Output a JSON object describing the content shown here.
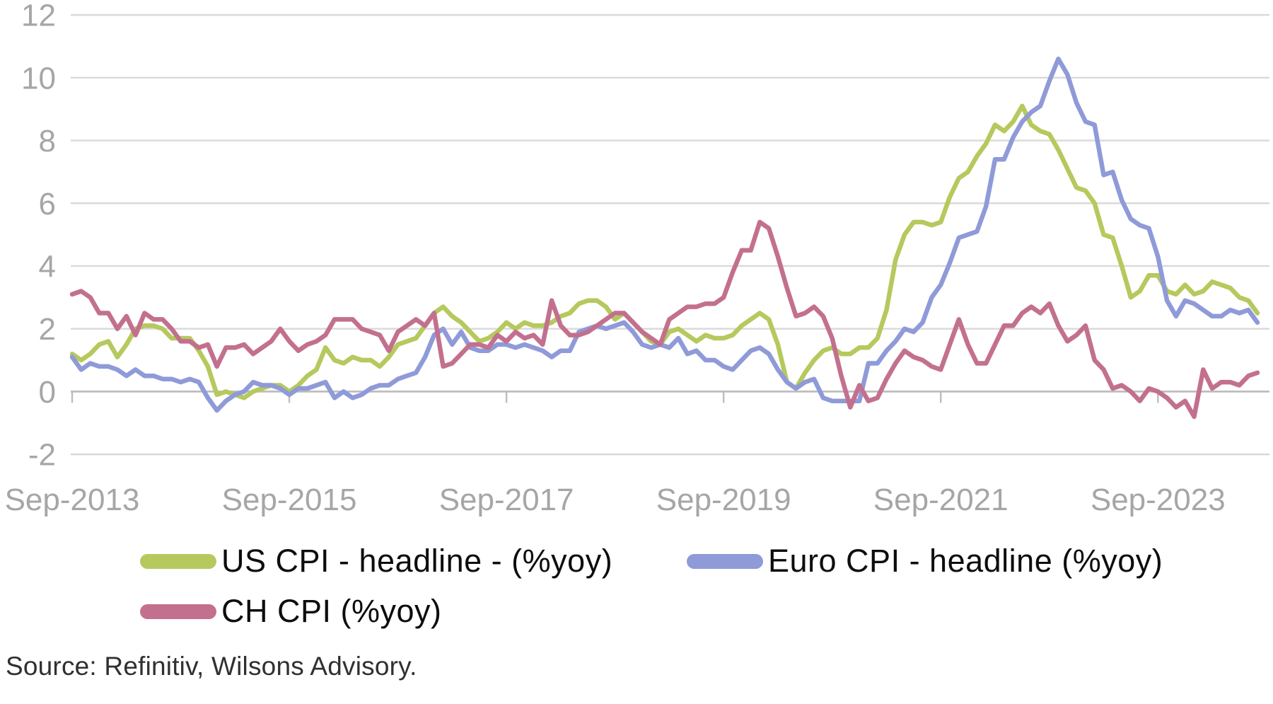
{
  "source": "Source: Refinitiv, Wilsons Advisory.",
  "chart_data": {
    "type": "line",
    "title": "",
    "xlabel": "",
    "ylabel": "",
    "x_start": "Sep-2013",
    "x_end": "Aug-2024",
    "x_frequency": "monthly",
    "x_tick_labels": [
      "Sep-2013",
      "Sep-2015",
      "Sep-2017",
      "Sep-2019",
      "Sep-2021",
      "Sep-2023"
    ],
    "x_tick_every_months": 24,
    "y_ticks": [
      12,
      10,
      8,
      6,
      4,
      2,
      0,
      -2
    ],
    "ylim": [
      -2,
      12
    ],
    "grid": "horizontal",
    "legend_position": "bottom",
    "grid_color": "#d9d9d9",
    "axis_line_color": "#bdbdbd",
    "axis_label_color": "#a6a6a6",
    "series": [
      {
        "name": "US CPI - headline - (%yoy)",
        "color": "#b5c95d",
        "values": [
          1.2,
          1.0,
          1.2,
          1.5,
          1.6,
          1.1,
          1.5,
          2.0,
          2.1,
          2.1,
          2.0,
          1.7,
          1.7,
          1.7,
          1.3,
          0.8,
          -0.1,
          0.0,
          -0.1,
          -0.2,
          0.0,
          0.1,
          0.2,
          0.2,
          0.0,
          0.2,
          0.5,
          0.7,
          1.4,
          1.0,
          0.9,
          1.1,
          1.0,
          1.0,
          0.8,
          1.1,
          1.5,
          1.6,
          1.7,
          2.1,
          2.5,
          2.7,
          2.4,
          2.2,
          1.9,
          1.6,
          1.7,
          1.9,
          2.2,
          2.0,
          2.2,
          2.1,
          2.1,
          2.2,
          2.4,
          2.5,
          2.8,
          2.9,
          2.9,
          2.7,
          2.3,
          2.5,
          2.2,
          1.9,
          1.6,
          1.5,
          1.9,
          2.0,
          1.8,
          1.6,
          1.8,
          1.7,
          1.7,
          1.8,
          2.1,
          2.3,
          2.5,
          2.3,
          1.5,
          0.3,
          0.1,
          0.6,
          1.0,
          1.3,
          1.4,
          1.2,
          1.2,
          1.4,
          1.4,
          1.7,
          2.6,
          4.2,
          5.0,
          5.4,
          5.4,
          5.3,
          5.4,
          6.2,
          6.8,
          7.0,
          7.5,
          7.9,
          8.5,
          8.3,
          8.6,
          9.1,
          8.5,
          8.3,
          8.2,
          7.7,
          7.1,
          6.5,
          6.4,
          6.0,
          5.0,
          4.9,
          4.0,
          3.0,
          3.2,
          3.7,
          3.7,
          3.2,
          3.1,
          3.4,
          3.1,
          3.2,
          3.5,
          3.4,
          3.3,
          3.0,
          2.9,
          2.5
        ]
      },
      {
        "name": "Euro CPI - headline (%yoy)",
        "color": "#8f9ad8",
        "values": [
          1.1,
          0.7,
          0.9,
          0.8,
          0.8,
          0.7,
          0.5,
          0.7,
          0.5,
          0.5,
          0.4,
          0.4,
          0.3,
          0.4,
          0.3,
          -0.2,
          -0.6,
          -0.3,
          -0.1,
          0.0,
          0.3,
          0.2,
          0.2,
          0.1,
          -0.1,
          0.1,
          0.1,
          0.2,
          0.3,
          -0.2,
          0.0,
          -0.2,
          -0.1,
          0.1,
          0.2,
          0.2,
          0.4,
          0.5,
          0.6,
          1.1,
          1.8,
          2.0,
          1.5,
          1.9,
          1.4,
          1.3,
          1.3,
          1.5,
          1.5,
          1.4,
          1.5,
          1.4,
          1.3,
          1.1,
          1.3,
          1.3,
          1.9,
          2.0,
          2.1,
          2.0,
          2.1,
          2.2,
          1.9,
          1.5,
          1.4,
          1.5,
          1.4,
          1.7,
          1.2,
          1.3,
          1.0,
          1.0,
          0.8,
          0.7,
          1.0,
          1.3,
          1.4,
          1.2,
          0.7,
          0.3,
          0.1,
          0.3,
          0.4,
          -0.2,
          -0.3,
          -0.3,
          -0.3,
          -0.3,
          0.9,
          0.9,
          1.3,
          1.6,
          2.0,
          1.9,
          2.2,
          3.0,
          3.4,
          4.1,
          4.9,
          5.0,
          5.1,
          5.9,
          7.4,
          7.4,
          8.1,
          8.6,
          8.9,
          9.1,
          9.9,
          10.6,
          10.1,
          9.2,
          8.6,
          8.5,
          6.9,
          7.0,
          6.1,
          5.5,
          5.3,
          5.2,
          4.3,
          2.9,
          2.4,
          2.9,
          2.8,
          2.6,
          2.4,
          2.4,
          2.6,
          2.5,
          2.6,
          2.2
        ]
      },
      {
        "name": "CH CPI (%yoy)",
        "color": "#c3708e",
        "values": [
          3.1,
          3.2,
          3.0,
          2.5,
          2.5,
          2.0,
          2.4,
          1.8,
          2.5,
          2.3,
          2.3,
          2.0,
          1.6,
          1.6,
          1.4,
          1.5,
          0.8,
          1.4,
          1.4,
          1.5,
          1.2,
          1.4,
          1.6,
          2.0,
          1.6,
          1.3,
          1.5,
          1.6,
          1.8,
          2.3,
          2.3,
          2.3,
          2.0,
          1.9,
          1.8,
          1.3,
          1.9,
          2.1,
          2.3,
          2.1,
          2.5,
          0.8,
          0.9,
          1.2,
          1.5,
          1.5,
          1.4,
          1.8,
          1.6,
          1.9,
          1.7,
          1.8,
          1.5,
          2.9,
          2.1,
          1.8,
          1.8,
          1.9,
          2.1,
          2.3,
          2.5,
          2.5,
          2.2,
          1.9,
          1.7,
          1.5,
          2.3,
          2.5,
          2.7,
          2.7,
          2.8,
          2.8,
          3.0,
          3.8,
          4.5,
          4.5,
          5.4,
          5.2,
          4.3,
          3.3,
          2.4,
          2.5,
          2.7,
          2.4,
          1.7,
          0.5,
          -0.5,
          0.2,
          -0.3,
          -0.2,
          0.4,
          0.9,
          1.3,
          1.1,
          1.0,
          0.8,
          0.7,
          1.5,
          2.3,
          1.5,
          0.9,
          0.9,
          1.5,
          2.1,
          2.1,
          2.5,
          2.7,
          2.5,
          2.8,
          2.1,
          1.6,
          1.8,
          2.1,
          1.0,
          0.7,
          0.1,
          0.2,
          0.0,
          -0.3,
          0.1,
          0.0,
          -0.2,
          -0.5,
          -0.3,
          -0.8,
          0.7,
          0.1,
          0.3,
          0.3,
          0.2,
          0.5,
          0.6
        ]
      }
    ]
  }
}
